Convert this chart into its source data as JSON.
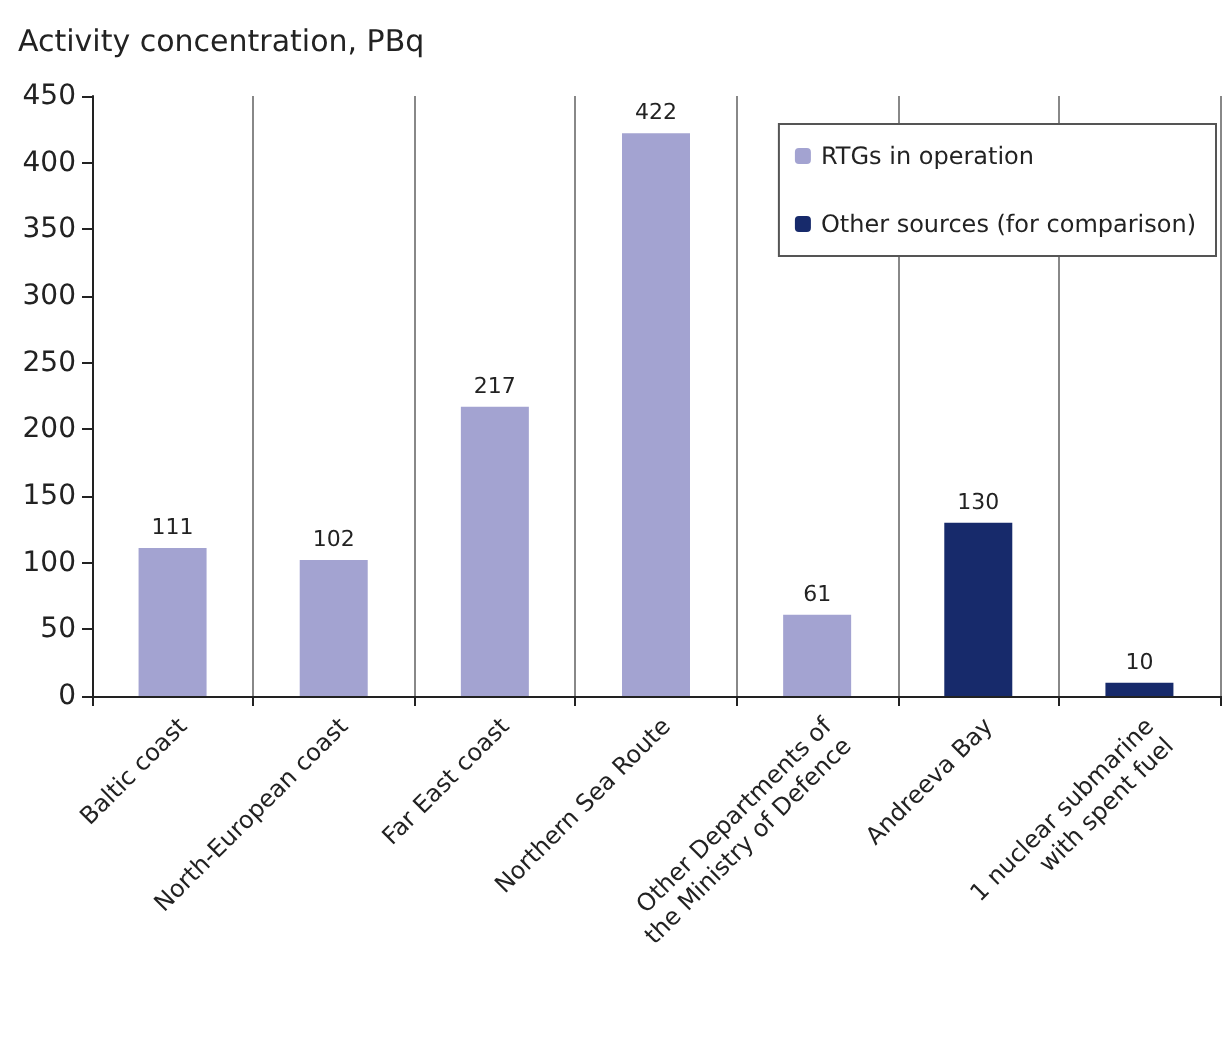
{
  "chart_data": {
    "type": "bar",
    "ylabel": "Activity concentration, PBq",
    "categories": [
      "Baltic coast",
      "North-European coast",
      "Far East coast",
      "Northern Sea Route",
      "Other Departments of\nthe Ministry of Defence",
      "Andreeva Bay",
      "1 nuclear submarine\nwith spent fuel"
    ],
    "series": [
      {
        "name": "RTGs in operation",
        "color": "#a3a3d1",
        "values": [
          111,
          102,
          217,
          422,
          61,
          null,
          null
        ]
      },
      {
        "name": "Other sources (for comparison)",
        "color": "#172a6b",
        "values": [
          null,
          null,
          null,
          null,
          null,
          130,
          10
        ]
      }
    ],
    "ylim": [
      0,
      450
    ],
    "yticks": [
      0,
      50,
      100,
      150,
      200,
      250,
      300,
      350,
      400,
      450
    ],
    "data_labels": true,
    "grid": "x",
    "legend": "top right"
  }
}
